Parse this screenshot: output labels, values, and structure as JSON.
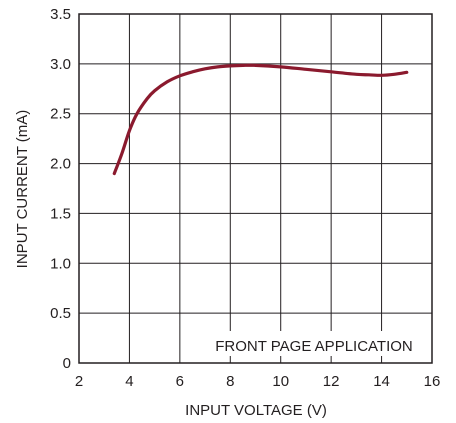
{
  "chart_data": {
    "type": "line",
    "title": "",
    "xlabel": "INPUT VOLTAGE (V)",
    "ylabel": "INPUT CURRENT (mA)",
    "xlim": [
      2,
      16
    ],
    "ylim": [
      0,
      3.5
    ],
    "x_ticks": [
      2,
      4,
      6,
      8,
      10,
      12,
      14,
      16
    ],
    "y_ticks": [
      0,
      0.5,
      1.0,
      1.5,
      2.0,
      2.5,
      3.0,
      3.5
    ],
    "x_tick_labels": [
      "2",
      "4",
      "6",
      "8",
      "10",
      "12",
      "14",
      "16"
    ],
    "y_tick_labels": [
      "0",
      "0.5",
      "1.0",
      "1.5",
      "2.0",
      "2.5",
      "3.0",
      "3.5"
    ],
    "grid": true,
    "annotation": "FRONT PAGE APPLICATION",
    "line_color": "#8b1a2e",
    "series": [
      {
        "x": [
          3.4,
          3.7,
          4.0,
          4.3,
          4.7,
          5.0,
          5.5,
          6.0,
          6.5,
          7.0,
          7.5,
          8.0,
          8.5,
          9.0,
          10.0,
          11.0,
          12.0,
          13.0,
          13.5,
          14.0,
          14.5,
          15.0
        ],
        "y": [
          1.9,
          2.1,
          2.33,
          2.5,
          2.65,
          2.73,
          2.82,
          2.88,
          2.92,
          2.95,
          2.97,
          2.98,
          2.985,
          2.985,
          2.97,
          2.945,
          2.92,
          2.895,
          2.89,
          2.885,
          2.895,
          2.915
        ]
      }
    ]
  }
}
